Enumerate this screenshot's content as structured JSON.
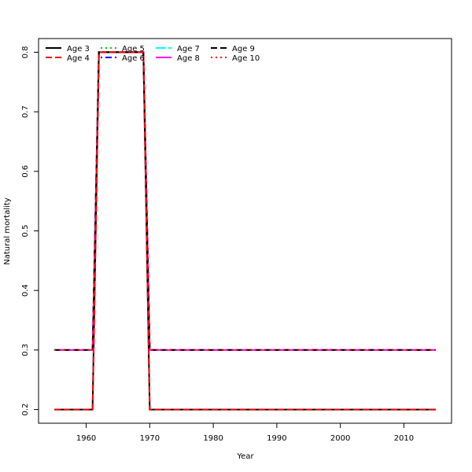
{
  "chart_data": {
    "type": "line",
    "title": "",
    "xlabel": "Year",
    "ylabel": "Natural mortality",
    "xlim": [
      1952.5,
      2017.5
    ],
    "ylim": [
      0.177,
      0.823
    ],
    "xticks": [
      1960,
      1970,
      1980,
      1990,
      2000,
      2010
    ],
    "yticks": [
      0.2,
      0.3,
      0.4,
      0.5,
      0.6,
      0.7,
      0.8
    ],
    "legend_position": "top-left",
    "grid": false,
    "series": [
      {
        "name": "Age 3",
        "color": "#000000",
        "dash": "solid",
        "x": [
          1955,
          1961,
          1962,
          1969,
          1970,
          2015
        ],
        "y": [
          0.2,
          0.2,
          0.8,
          0.8,
          0.2,
          0.2
        ]
      },
      {
        "name": "Age 4",
        "color": "#ff0000",
        "dash": "dashed",
        "x": [
          1955,
          1961,
          1962,
          1969,
          1970,
          2015
        ],
        "y": [
          0.2,
          0.2,
          0.8,
          0.8,
          0.2,
          0.2
        ]
      },
      {
        "name": "Age 5",
        "color": "#00cd00",
        "dash": "dotted",
        "x": [
          1955,
          1961,
          1962,
          1969,
          1970,
          2015
        ],
        "y": [
          0.3,
          0.3,
          0.8,
          0.8,
          0.3,
          0.3
        ]
      },
      {
        "name": "Age 6",
        "color": "#0000ff",
        "dash": "dotdash",
        "x": [
          1955,
          1961,
          1962,
          1969,
          1970,
          2015
        ],
        "y": [
          0.3,
          0.3,
          0.8,
          0.8,
          0.3,
          0.3
        ]
      },
      {
        "name": "Age 7",
        "color": "#00ffff",
        "dash": "longdash",
        "x": [
          1955,
          1961,
          1962,
          1969,
          1970,
          2015
        ],
        "y": [
          0.3,
          0.3,
          0.8,
          0.8,
          0.3,
          0.3
        ]
      },
      {
        "name": "Age 8",
        "color": "#ff00ff",
        "dash": "solid",
        "x": [
          1955,
          1961,
          1962,
          1969,
          1970,
          2015
        ],
        "y": [
          0.3,
          0.3,
          0.8,
          0.8,
          0.3,
          0.3
        ]
      },
      {
        "name": "Age 9",
        "color": "#000000",
        "dash": "dashed",
        "x": [
          1955,
          1961,
          1962,
          1969,
          1970,
          2015
        ],
        "y": [
          0.3,
          0.3,
          0.8,
          0.8,
          0.3,
          0.3
        ]
      },
      {
        "name": "Age 10",
        "color": "#ff0000",
        "dash": "dotted",
        "x": [
          1955,
          1961,
          1962,
          1969,
          1970,
          2015
        ],
        "y": [
          0.3,
          0.3,
          0.8,
          0.8,
          0.3,
          0.3
        ]
      }
    ]
  }
}
